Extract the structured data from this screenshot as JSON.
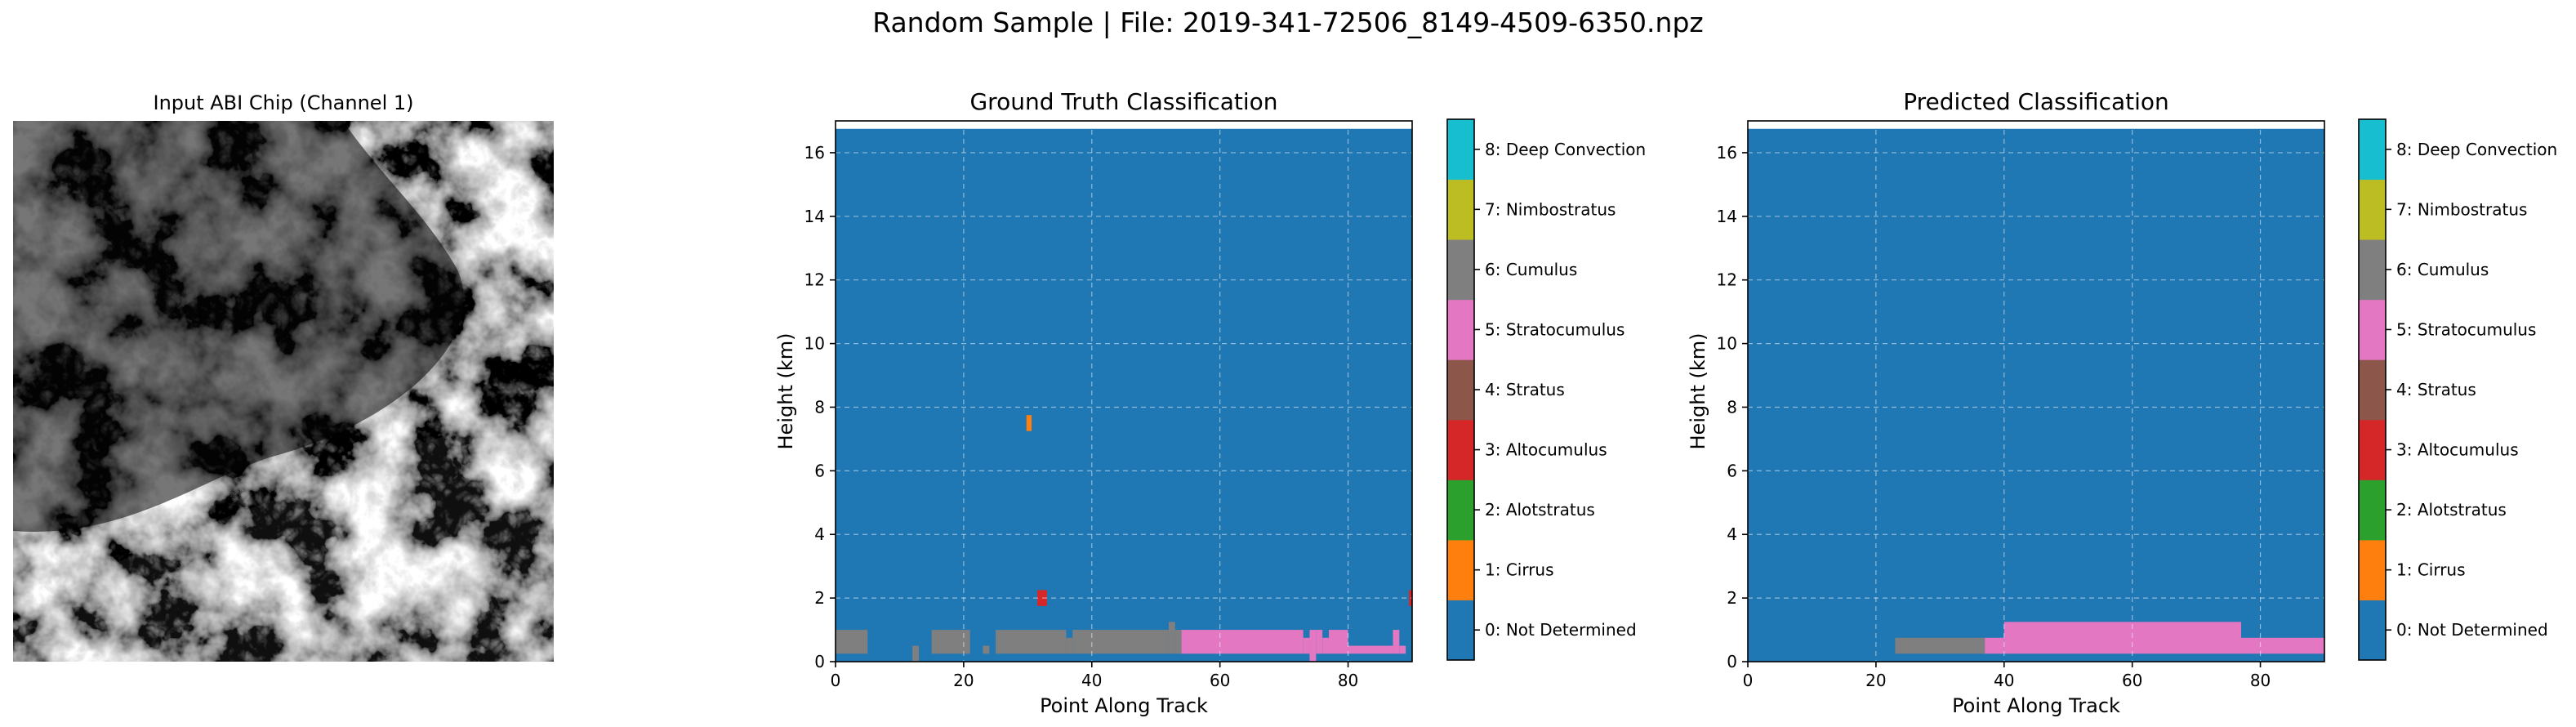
{
  "suptitle": "Random Sample | File: 2019-341-72506_8149-4509-6350.npz",
  "image_panel": {
    "title": "Input ABI Chip (Channel 1)"
  },
  "classes": [
    {
      "id": 0,
      "label": "0: Not Determined",
      "color": "#1f77b4"
    },
    {
      "id": 1,
      "label": "1: Cirrus",
      "color": "#ff7f0e"
    },
    {
      "id": 2,
      "label": "2: Alotstratus",
      "color": "#2ca02c"
    },
    {
      "id": 3,
      "label": "3: Altocumulus",
      "color": "#d62728"
    },
    {
      "id": 4,
      "label": "4: Stratus",
      "color": "#8c564b"
    },
    {
      "id": 5,
      "label": "5: Stratocumulus",
      "color": "#e377c2"
    },
    {
      "id": 6,
      "label": "6: Cumulus",
      "color": "#7f7f7f"
    },
    {
      "id": 7,
      "label": "7: Nimbostratus",
      "color": "#bcbd22"
    },
    {
      "id": 8,
      "label": "8: Deep Convection",
      "color": "#17becf"
    }
  ],
  "chart_data": [
    {
      "type": "heatmap",
      "title": "Ground Truth Classification",
      "xlabel": "Point Along Track",
      "ylabel": "Height (km)",
      "xlim": [
        0,
        90
      ],
      "ylim": [
        0,
        17
      ],
      "xticks": [
        0,
        20,
        40,
        60,
        80
      ],
      "yticks": [
        0,
        2,
        4,
        6,
        8,
        10,
        12,
        14,
        16
      ],
      "background_class": 0,
      "top_of_data_km": 16.75,
      "cells": [
        {
          "x0": 0,
          "x1": 5,
          "y0": 0.25,
          "y1": 1.0,
          "cls": 6
        },
        {
          "x0": 12,
          "x1": 13,
          "y0": 0.0,
          "y1": 0.5,
          "cls": 6
        },
        {
          "x0": 15,
          "x1": 21,
          "y0": 0.25,
          "y1": 1.0,
          "cls": 6
        },
        {
          "x0": 23,
          "x1": 24,
          "y0": 0.25,
          "y1": 0.5,
          "cls": 6
        },
        {
          "x0": 25,
          "x1": 36,
          "y0": 0.25,
          "y1": 1.0,
          "cls": 6
        },
        {
          "x0": 36,
          "x1": 37,
          "y0": 0.25,
          "y1": 0.75,
          "cls": 6
        },
        {
          "x0": 37,
          "x1": 52,
          "y0": 0.25,
          "y1": 1.0,
          "cls": 6
        },
        {
          "x0": 52,
          "x1": 53,
          "y0": 0.25,
          "y1": 1.25,
          "cls": 6
        },
        {
          "x0": 53,
          "x1": 54,
          "y0": 0.25,
          "y1": 1.0,
          "cls": 6
        },
        {
          "x0": 54,
          "x1": 73,
          "y0": 0.25,
          "y1": 1.0,
          "cls": 5
        },
        {
          "x0": 73,
          "x1": 74,
          "y0": 0.25,
          "y1": 0.75,
          "cls": 5
        },
        {
          "x0": 74,
          "x1": 75,
          "y0": 0.0,
          "y1": 1.0,
          "cls": 5
        },
        {
          "x0": 75,
          "x1": 76,
          "y0": 0.25,
          "y1": 1.0,
          "cls": 5
        },
        {
          "x0": 76,
          "x1": 77,
          "y0": 0.25,
          "y1": 0.75,
          "cls": 5
        },
        {
          "x0": 77,
          "x1": 80,
          "y0": 0.25,
          "y1": 1.0,
          "cls": 5
        },
        {
          "x0": 80,
          "x1": 87,
          "y0": 0.25,
          "y1": 0.5,
          "cls": 5
        },
        {
          "x0": 87,
          "x1": 88,
          "y0": 0.25,
          "y1": 1.0,
          "cls": 5
        },
        {
          "x0": 88,
          "x1": 89,
          "y0": 0.25,
          "y1": 0.5,
          "cls": 5
        },
        {
          "x0": 29.8,
          "x1": 30.6,
          "y0": 7.25,
          "y1": 7.75,
          "cls": 1
        },
        {
          "x0": 31.5,
          "x1": 33.0,
          "y0": 1.75,
          "y1": 2.25,
          "cls": 3
        },
        {
          "x0": 89.5,
          "x1": 90,
          "y0": 1.75,
          "y1": 2.25,
          "cls": 3
        }
      ]
    },
    {
      "type": "heatmap",
      "title": "Predicted Classification",
      "xlabel": "Point Along Track",
      "ylabel": "Height (km)",
      "xlim": [
        0,
        90
      ],
      "ylim": [
        0,
        17
      ],
      "xticks": [
        0,
        20,
        40,
        60,
        80
      ],
      "yticks": [
        0,
        2,
        4,
        6,
        8,
        10,
        12,
        14,
        16
      ],
      "background_class": 0,
      "top_of_data_km": 16.75,
      "cells": [
        {
          "x0": 23,
          "x1": 37,
          "y0": 0.25,
          "y1": 0.75,
          "cls": 6
        },
        {
          "x0": 37,
          "x1": 40,
          "y0": 0.25,
          "y1": 0.75,
          "cls": 5
        },
        {
          "x0": 40,
          "x1": 77,
          "y0": 0.25,
          "y1": 1.25,
          "cls": 5
        },
        {
          "x0": 77,
          "x1": 90,
          "y0": 0.25,
          "y1": 0.75,
          "cls": 5
        }
      ]
    }
  ]
}
